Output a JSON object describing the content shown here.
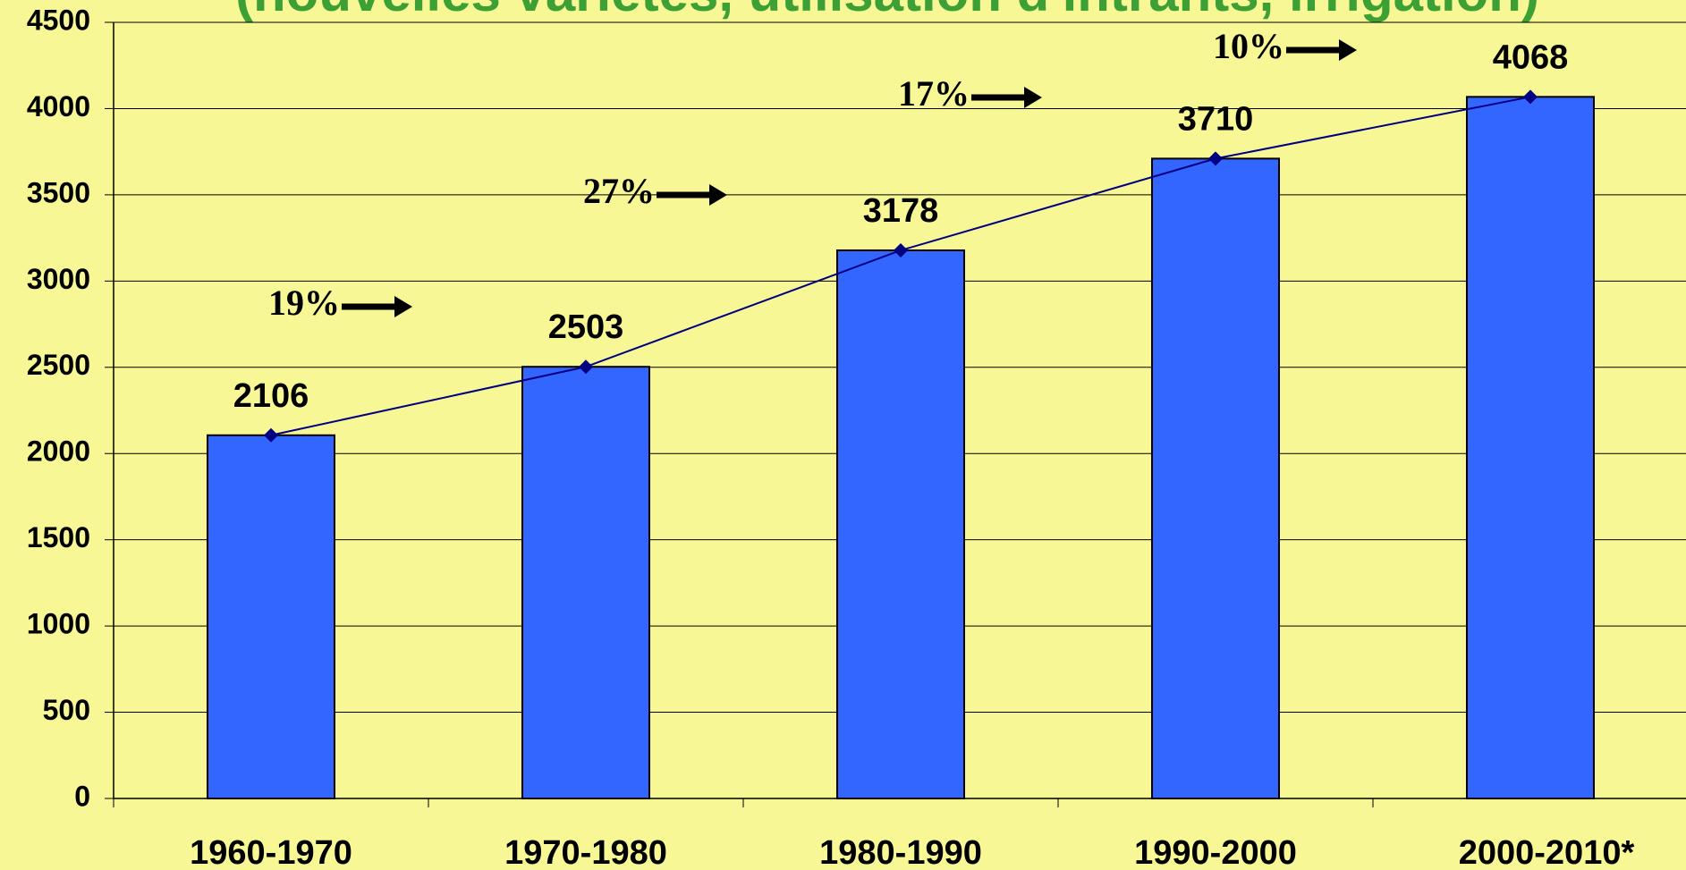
{
  "chart_data": {
    "type": "bar",
    "title": "(nouvelles variétés, utilisation d'intrants, irrigation)",
    "categories": [
      "1960-1970",
      "1970-1980",
      "1980-1990",
      "1990-2000",
      "2000-2010*"
    ],
    "values": [
      2106,
      2503,
      3178,
      3710,
      4068
    ],
    "color": "#3366ff",
    "line_color": "#000080",
    "annotations": [
      "19%",
      "27%",
      "17%",
      "10%"
    ],
    "ylim": [
      0,
      4500
    ],
    "yticks": [
      0,
      500,
      1000,
      1500,
      2000,
      2500,
      3000,
      3500,
      4000,
      4500
    ],
    "grid": true
  }
}
